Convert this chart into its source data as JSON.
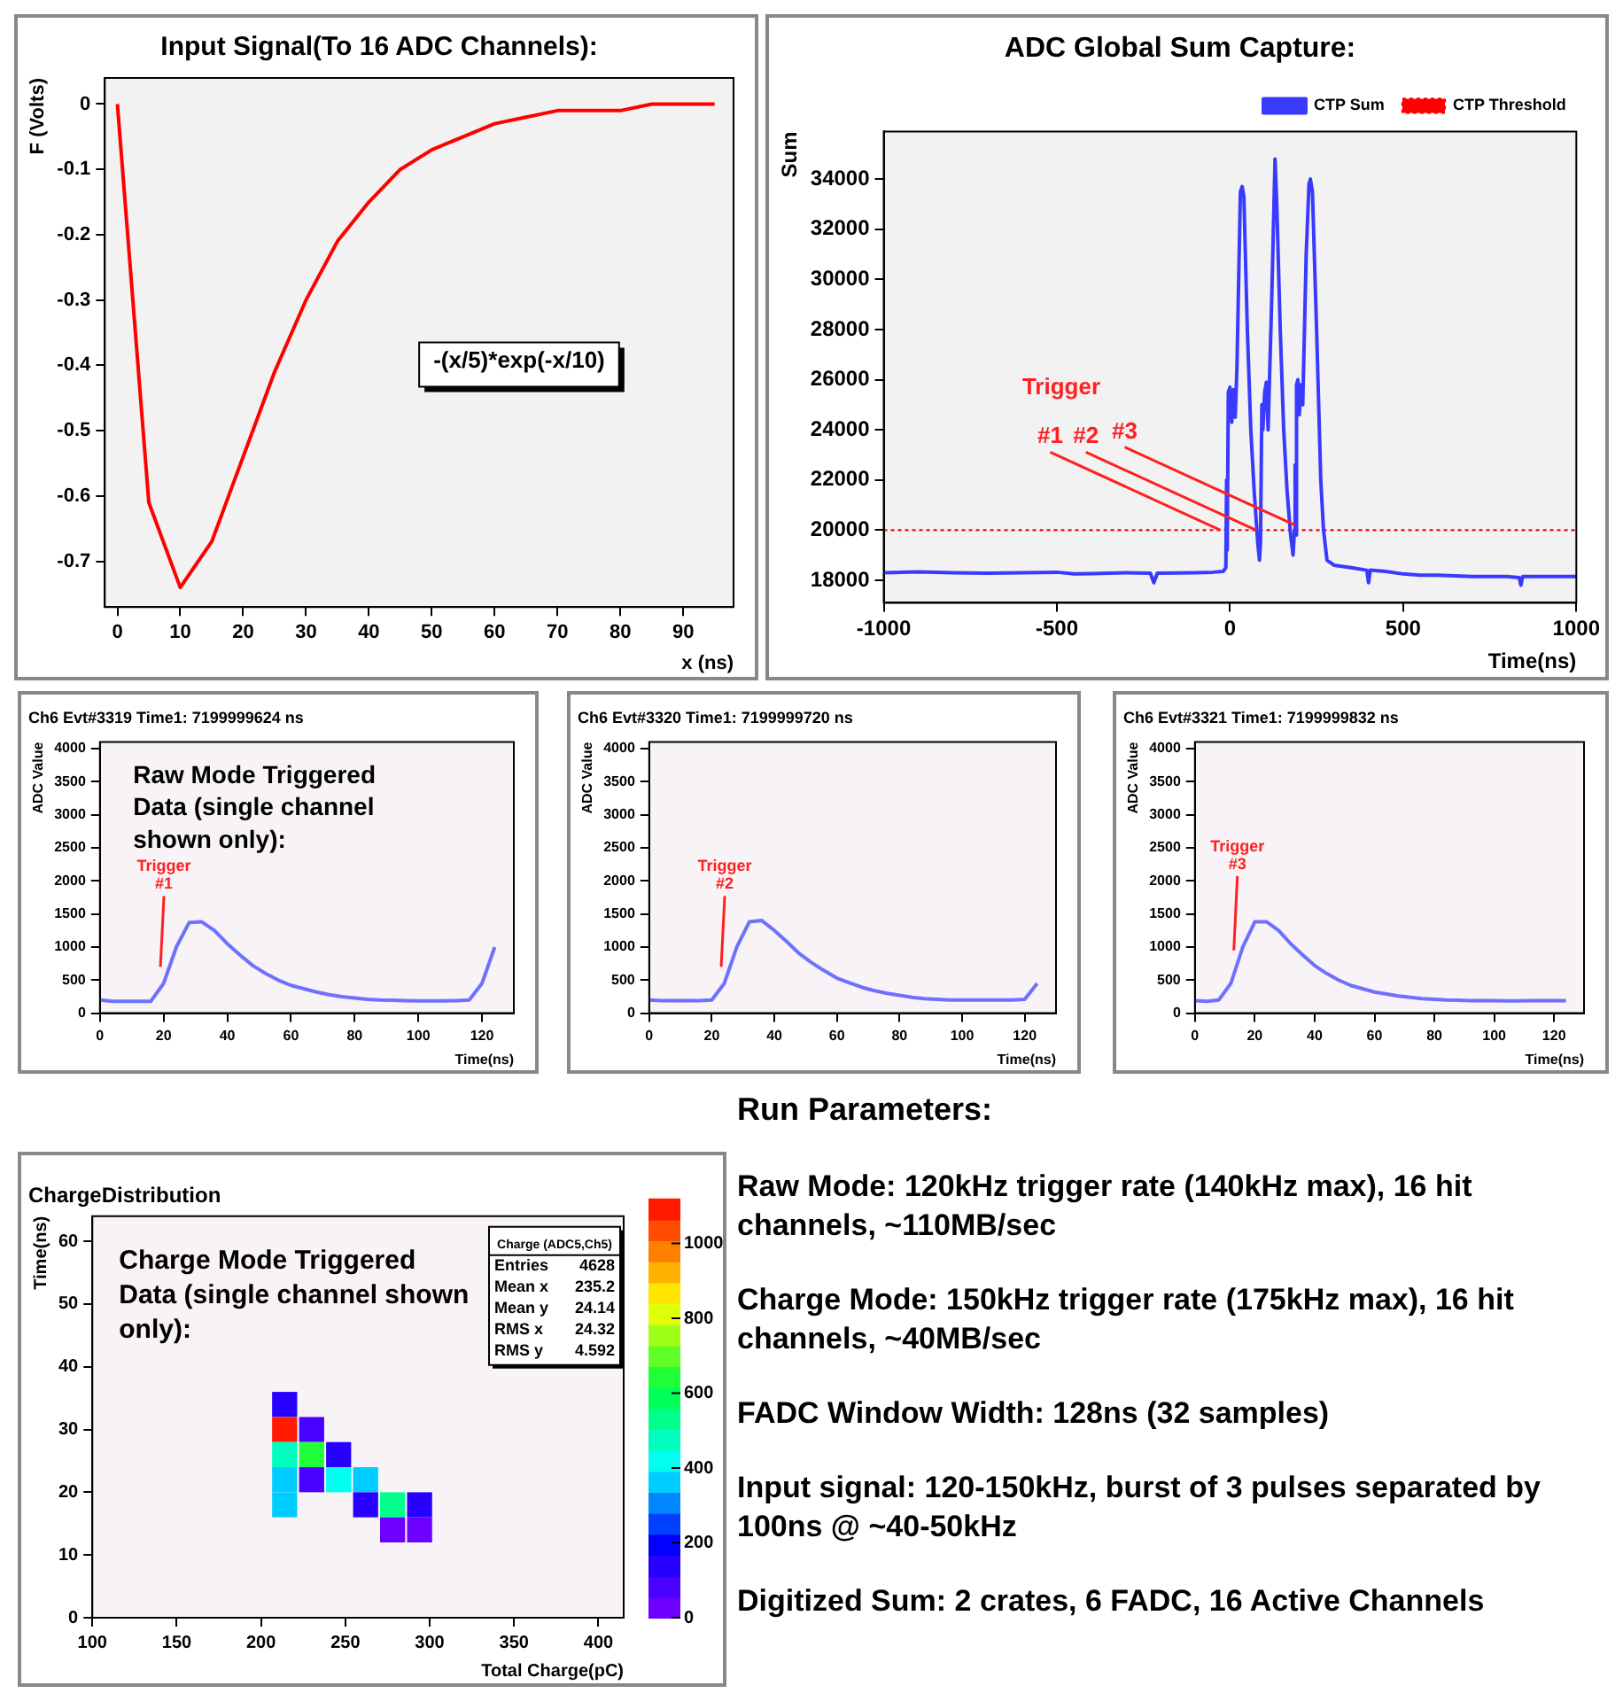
{
  "chart_data": [
    {
      "type": "line",
      "title": "Input Signal(To 16 ADC Channels):",
      "xlabel": "x (ns)",
      "ylabel": "F (Volts)",
      "x": [
        0,
        5,
        10,
        15,
        20,
        25,
        30,
        35,
        40,
        45,
        50,
        55,
        60,
        65,
        70,
        75,
        80,
        85,
        90,
        95
      ],
      "series": [
        {
          "color": "#ff0000",
          "values": [
            0,
            -0.61,
            -0.74,
            -0.67,
            -0.54,
            -0.41,
            -0.3,
            -0.21,
            -0.15,
            -0.1,
            -0.07,
            -0.05,
            -0.03,
            -0.02,
            -0.01,
            -0.01,
            -0.01,
            0,
            0,
            0
          ]
        }
      ],
      "xlim": [
        -2,
        98
      ],
      "ylim": [
        -0.77,
        0.04
      ],
      "xticks": [
        0,
        10,
        20,
        30,
        40,
        50,
        60,
        70,
        80,
        90
      ],
      "yticks": [
        0,
        -0.1,
        -0.2,
        -0.3,
        -0.4,
        -0.5,
        -0.6,
        -0.7
      ],
      "annotations": [
        "-(x/5)*exp(-x/10)"
      ]
    },
    {
      "type": "line",
      "title": "ADC Global Sum Capture:",
      "xlabel": "Time(ns)",
      "ylabel": "Sum",
      "legend": "top right",
      "series": [
        {
          "name": "CTP Sum",
          "color": "#3a3aff",
          "x": [
            -1000,
            -900,
            -800,
            -700,
            -600,
            -500,
            -450,
            -400,
            -300,
            -230,
            -220,
            -210,
            -100,
            -50,
            -20,
            -12,
            -10,
            -8,
            -5,
            0,
            5,
            10,
            15,
            20,
            30,
            35,
            40,
            50,
            60,
            70,
            80,
            85,
            88,
            92,
            95,
            100,
            105,
            110,
            120,
            130,
            135,
            145,
            155,
            165,
            175,
            182,
            186,
            188,
            190,
            192,
            196,
            200,
            205,
            210,
            220,
            228,
            232,
            238,
            250,
            262,
            270,
            280,
            300,
            350,
            395,
            400,
            405,
            450,
            500,
            550,
            600,
            700,
            800,
            835,
            840,
            845,
            900,
            1000
          ],
          "values": [
            18300,
            18330,
            18300,
            18280,
            18300,
            18320,
            18250,
            18260,
            18300,
            18280,
            17900,
            18280,
            18300,
            18320,
            18350,
            18500,
            22000,
            19200,
            25500,
            25700,
            24300,
            25600,
            24500,
            26500,
            33500,
            33700,
            33300,
            28000,
            24000,
            21500,
            19500,
            18800,
            19500,
            25000,
            24000,
            25500,
            25900,
            24000,
            29000,
            34800,
            33000,
            28000,
            24000,
            21500,
            19800,
            19000,
            20000,
            22600,
            19800,
            25800,
            26000,
            24600,
            25800,
            25000,
            31000,
            33800,
            34000,
            33500,
            28000,
            22000,
            20000,
            18800,
            18600,
            18500,
            18400,
            17900,
            18400,
            18350,
            18250,
            18200,
            18200,
            18150,
            18150,
            18100,
            17800,
            18150,
            18150,
            18150
          ]
        },
        {
          "name": "CTP Threshold",
          "color": "#ff0000",
          "line_style": "dotted",
          "x": [
            -1000,
            1000
          ],
          "values": [
            20000,
            20000
          ]
        }
      ],
      "xlim": [
        -1000,
        1000
      ],
      "ylim": [
        17100,
        35900
      ],
      "xticks": [
        -1000,
        -500,
        0,
        500,
        1000
      ],
      "yticks": [
        18000,
        20000,
        22000,
        24000,
        26000,
        28000,
        30000,
        32000,
        34000
      ],
      "annotations": [
        "Trigger",
        {
          "text": "#1",
          "x": -28,
          "y": 20000
        },
        {
          "text": "#2",
          "x": 75,
          "y": 20000
        },
        {
          "text": "#3",
          "x": 187,
          "y": 20200
        }
      ]
    },
    {
      "type": "line",
      "title": "Ch6 Evt#3319 Time1: 7199999624 ns",
      "xlabel": "Time(ns)",
      "ylabel": "ADC Value",
      "x": [
        0,
        4,
        8,
        12,
        16,
        20,
        24,
        28,
        32,
        36,
        40,
        44,
        48,
        52,
        56,
        60,
        64,
        68,
        72,
        76,
        80,
        84,
        88,
        92,
        96,
        100,
        104,
        108,
        112,
        116,
        120,
        124
      ],
      "series": [
        {
          "color": "#7070ff",
          "values": [
            200,
            180,
            180,
            180,
            180,
            450,
            1000,
            1370,
            1380,
            1250,
            1050,
            880,
            720,
            600,
            500,
            420,
            370,
            320,
            280,
            250,
            230,
            210,
            200,
            195,
            190,
            185,
            185,
            185,
            190,
            200,
            450,
            1000
          ]
        }
      ],
      "xlim": [
        0,
        130
      ],
      "ylim": [
        0,
        4100
      ],
      "xticks": [
        0,
        20,
        40,
        60,
        80,
        100,
        120
      ],
      "yticks": [
        0,
        500,
        1000,
        1500,
        2000,
        2500,
        3000,
        3500,
        4000
      ],
      "annotations": [
        "Raw Mode Triggered Data (single channel shown only):",
        {
          "text": "Trigger #1",
          "x": 19,
          "y": 700
        }
      ]
    },
    {
      "type": "line",
      "title": "Ch6 Evt#3320 Time1: 7199999720 ns",
      "xlabel": "Time(ns)",
      "ylabel": "ADC Value",
      "x": [
        0,
        4,
        8,
        12,
        16,
        20,
        24,
        28,
        32,
        36,
        40,
        44,
        48,
        52,
        56,
        60,
        64,
        68,
        72,
        76,
        80,
        84,
        88,
        92,
        96,
        100,
        104,
        108,
        112,
        116,
        120,
        124
      ],
      "series": [
        {
          "color": "#7070ff",
          "values": [
            200,
            190,
            190,
            190,
            190,
            200,
            450,
            1000,
            1380,
            1400,
            1250,
            1080,
            900,
            760,
            640,
            530,
            460,
            390,
            340,
            300,
            270,
            240,
            220,
            210,
            200,
            200,
            200,
            200,
            200,
            200,
            210,
            450
          ]
        }
      ],
      "xlim": [
        0,
        130
      ],
      "ylim": [
        0,
        4100
      ],
      "xticks": [
        0,
        20,
        40,
        60,
        80,
        100,
        120
      ],
      "yticks": [
        0,
        500,
        1000,
        1500,
        2000,
        2500,
        3000,
        3500,
        4000
      ],
      "annotations": [
        {
          "text": "Trigger #2",
          "x": 23,
          "y": 700
        }
      ]
    },
    {
      "type": "line",
      "title": "Ch6 Evt#3321 Time1: 7199999832 ns",
      "xlabel": "Time(ns)",
      "ylabel": "ADC Value",
      "x": [
        0,
        4,
        8,
        12,
        16,
        20,
        24,
        28,
        32,
        36,
        40,
        44,
        48,
        52,
        56,
        60,
        64,
        68,
        72,
        76,
        80,
        84,
        88,
        92,
        96,
        100,
        104,
        108,
        112,
        116,
        120,
        124
      ],
      "series": [
        {
          "color": "#7070ff",
          "values": [
            190,
            180,
            200,
            450,
            1000,
            1380,
            1380,
            1250,
            1050,
            880,
            720,
            600,
            500,
            420,
            370,
            320,
            290,
            260,
            240,
            220,
            210,
            200,
            195,
            190,
            190,
            190,
            185,
            185,
            190,
            190,
            190,
            190
          ]
        }
      ],
      "xlim": [
        0,
        130
      ],
      "ylim": [
        0,
        4100
      ],
      "xticks": [
        0,
        20,
        40,
        60,
        80,
        100,
        120
      ],
      "yticks": [
        0,
        500,
        1000,
        1500,
        2000,
        2500,
        3000,
        3500,
        4000
      ],
      "annotations": [
        {
          "text": "Trigger #3",
          "x": 13,
          "y": 950
        }
      ]
    },
    {
      "type": "scatter",
      "title": "ChargeDistribution",
      "xlabel": "Total Charge(pC)",
      "ylabel": "Time(ns)",
      "marker": "square",
      "x": [
        214,
        214,
        230,
        214,
        230,
        246,
        214,
        230,
        246,
        262,
        214,
        262,
        278,
        294,
        278,
        294
      ],
      "values": [
        34,
        30,
        30,
        26,
        26,
        26,
        22,
        22,
        22,
        22,
        18,
        18,
        18,
        18,
        14,
        14
      ],
      "cvalues": [
        150,
        1080,
        80,
        500,
        620,
        160,
        380,
        60,
        440,
        380,
        380,
        150,
        520,
        140,
        50,
        50
      ],
      "clim": [
        0,
        1120
      ],
      "cticks": [
        0,
        200,
        400,
        600,
        800,
        1000
      ],
      "xlim": [
        100,
        415
      ],
      "ylim": [
        0,
        64
      ],
      "xticks": [
        100,
        150,
        200,
        250,
        300,
        350,
        400
      ],
      "yticks": [
        0,
        10,
        20,
        30,
        40,
        50,
        60
      ],
      "annotations": [
        "Charge Mode Triggered Data (single channel shown only):",
        "Charge (ADC5,Ch5)",
        "Entries 4628",
        "Mean x 235.2",
        "Mean y 24.14",
        "RMS x 24.32",
        "RMS y 4.592"
      ]
    },
    {
      "type": "other",
      "title": "Run Parameters:",
      "annotations": [
        "Raw Mode: 120kHz trigger rate (140kHz max), 16 hit channels, ~110MB/sec",
        "Charge Mode: 150kHz trigger rate (175kHz max), 16 hit channels, ~40MB/sec",
        "FADC Window Width: 128ns (32 samples)",
        "Input signal: 120-150kHz, burst of 3 pulses separated by 100ns @ ~40-50kHz",
        "Digitized Sum: 2 crates, 6 FADC, 16 Active Channels"
      ]
    }
  ]
}
